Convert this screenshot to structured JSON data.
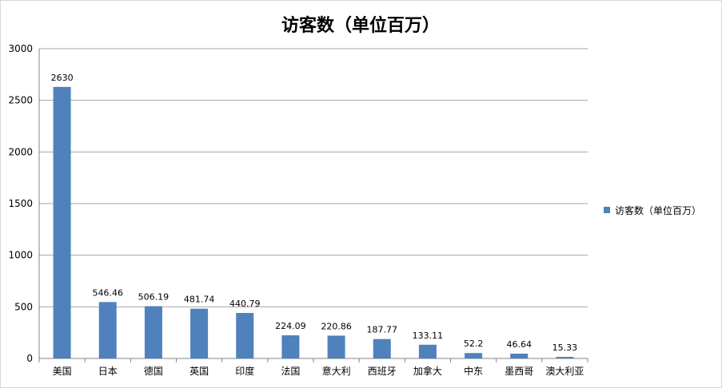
{
  "chart_data": {
    "type": "bar",
    "title": "访客数（单位百万）",
    "xlabel": "",
    "ylabel": "",
    "ylim": [
      0,
      3000
    ],
    "yticks": [
      0,
      500,
      1000,
      1500,
      2000,
      2500,
      3000
    ],
    "grid": true,
    "legend_position": "right",
    "categories": [
      "美国",
      "日本",
      "德国",
      "英国",
      "印度",
      "法国",
      "意大利",
      "西班牙",
      "加拿大",
      "中东",
      "墨西哥",
      "澳大利亚"
    ],
    "series": [
      {
        "name": "访客数（单位百万）",
        "color": "#4f81bd",
        "values": [
          2630,
          546.46,
          506.19,
          481.74,
          440.79,
          224.09,
          220.86,
          187.77,
          133.11,
          52.2,
          46.64,
          15.33
        ],
        "data_labels": [
          "2630",
          "546.46",
          "506.19",
          "481.74",
          "440.79",
          "224.09",
          "220.86",
          "187.77",
          "133.11",
          "52.2",
          "46.64",
          "15.33"
        ]
      }
    ]
  }
}
